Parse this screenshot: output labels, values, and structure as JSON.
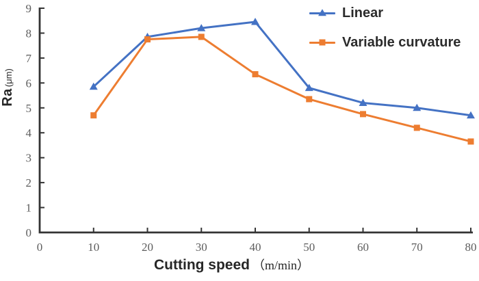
{
  "chart_data": {
    "type": "line",
    "title": "",
    "x": [
      10,
      20,
      30,
      40,
      50,
      60,
      70,
      80
    ],
    "series": [
      {
        "name": "Linear",
        "color": "#4472C4",
        "marker": "triangle",
        "values": [
          5.85,
          7.85,
          8.2,
          8.45,
          5.8,
          5.2,
          5.0,
          4.7
        ]
      },
      {
        "name": "Variable curvature",
        "color": "#ED7D31",
        "marker": "square",
        "values": [
          4.7,
          7.75,
          7.85,
          6.35,
          5.35,
          4.75,
          4.2,
          3.65
        ]
      }
    ],
    "xlabel": "Cutting speed (m/min)",
    "xlabel_main": "Cutting speed",
    "xlabel_unit": "（m/min）",
    "ylabel": "Ra (μm)",
    "ylabel_main": "Ra",
    "ylabel_unit": "(μm)",
    "xlim": [
      0,
      80
    ],
    "ylim": [
      0,
      9
    ],
    "xticks": [
      0,
      10,
      20,
      30,
      40,
      50,
      60,
      70,
      80
    ],
    "yticks": [
      0,
      1,
      2,
      3,
      4,
      5,
      6,
      7,
      8,
      9
    ],
    "grid": false,
    "legend_position": "top-right",
    "axis_color": "#333333",
    "tick_label_color": "#5d5d5d"
  }
}
